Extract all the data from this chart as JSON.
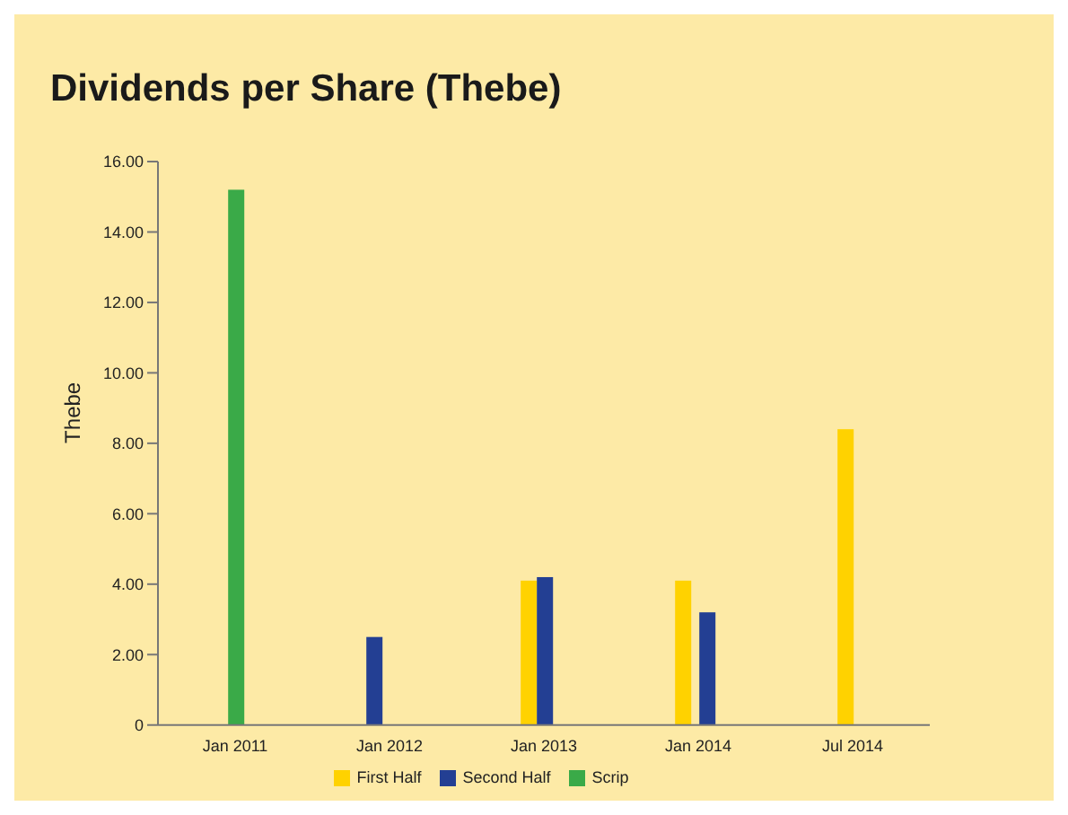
{
  "chart_data": {
    "type": "bar",
    "title": "Dividends per Share (Thebe)",
    "ylabel": "Thebe",
    "categories": [
      "Jan 2011",
      "Jan 2012",
      "Jan 2013",
      "Jan 2014",
      "Jul 2014"
    ],
    "series": [
      {
        "name": "First Half",
        "color": "#ffd200",
        "values": [
          null,
          null,
          4.1,
          4.1,
          8.4
        ]
      },
      {
        "name": "Second Half",
        "color": "#233f93",
        "values": [
          null,
          2.5,
          4.2,
          3.2,
          null
        ]
      },
      {
        "name": "Scrip",
        "color": "#3aaa48",
        "values": [
          15.2,
          null,
          null,
          null,
          null
        ]
      }
    ],
    "ylim": [
      0,
      16
    ],
    "yticks": [
      0,
      {
        "value": 2,
        "label": "2.00"
      },
      {
        "value": 4,
        "label": "4.00"
      },
      {
        "value": 6,
        "label": "6.00"
      },
      {
        "value": 8,
        "label": "8.00"
      },
      {
        "value": 10,
        "label": "10.00"
      },
      {
        "value": 12,
        "label": "12.00"
      },
      {
        "value": 14,
        "label": "14.00"
      },
      {
        "value": 16,
        "label": "16.00"
      }
    ],
    "grid": false,
    "legend": "bottom"
  }
}
